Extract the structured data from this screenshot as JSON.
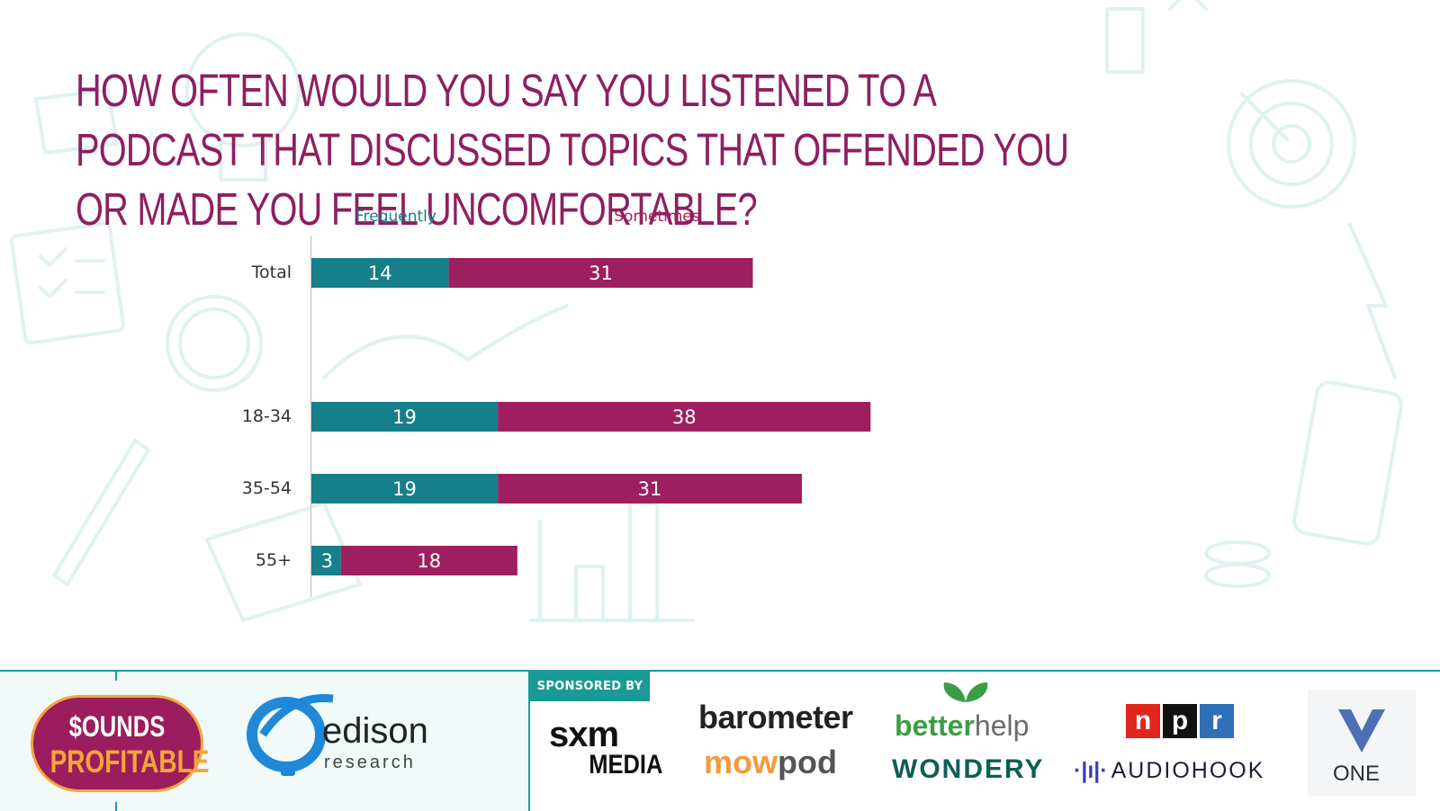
{
  "title": "How often would you say you listened to a podcast that discussed topics that offended you or made you feel uncomfortable?",
  "colors": {
    "frequently": "#157f8a",
    "sometimes": "#9e1f5f",
    "title": "#8e1f5f",
    "accent": "#1a9a96"
  },
  "chart_data": {
    "type": "bar",
    "orientation": "horizontal",
    "stacked": true,
    "categories": [
      "Total",
      "18-34",
      "35-54",
      "55+"
    ],
    "series": [
      {
        "name": "Frequently",
        "values": [
          14,
          19,
          19,
          3
        ]
      },
      {
        "name": "Sometimes",
        "values": [
          31,
          38,
          31,
          18
        ]
      }
    ],
    "xlim": [
      0,
      60
    ],
    "grid": false,
    "legend": "top"
  },
  "footer": {
    "sponsored_by": "SPONSORED BY",
    "logos": {
      "sounds_profitable": [
        "$OUNDS",
        "PROFITABLE"
      ],
      "edison": [
        "edison",
        "research"
      ],
      "sxm": [
        "sxm",
        "MEDIA"
      ],
      "barometer": "barometer",
      "mowpod": [
        "mow",
        "pod"
      ],
      "betterhelp": [
        "better",
        "help"
      ],
      "wondery": "WONDERY",
      "npr": [
        "n",
        "p",
        "r"
      ],
      "audiohook": [
        "·|ı|·",
        "AUDIOHOOK"
      ],
      "one": "ONE"
    }
  }
}
